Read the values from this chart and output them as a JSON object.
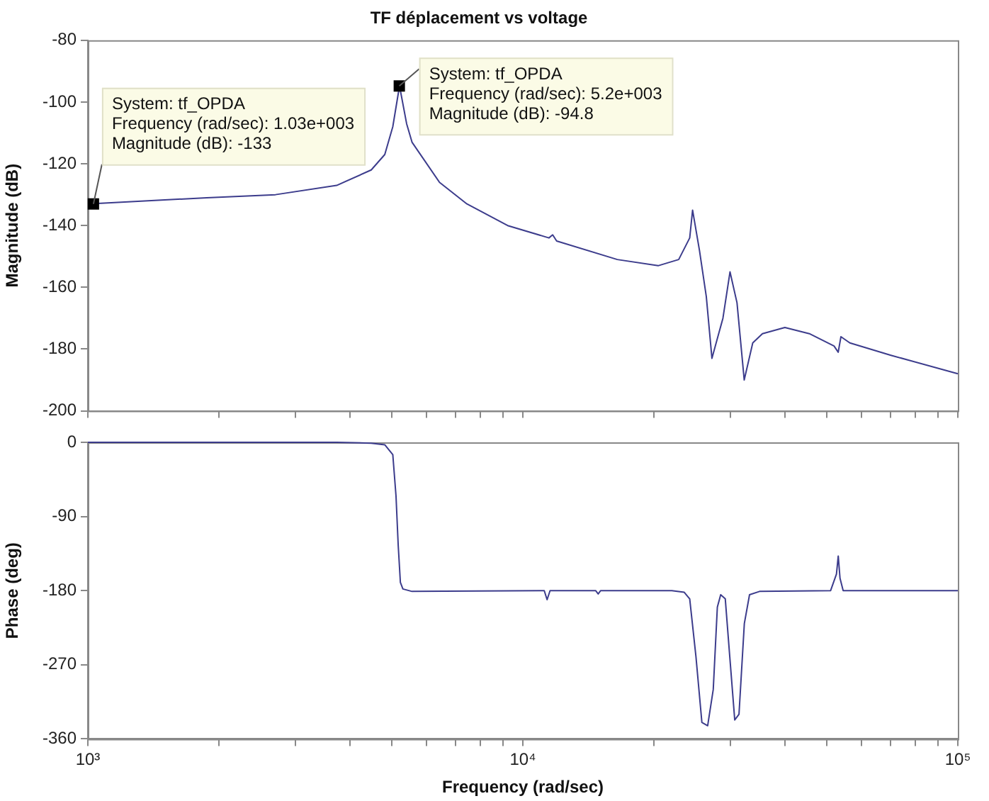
{
  "chart_data": [
    {
      "type": "line",
      "title": "TF déplacement vs voltage",
      "ylabel": "Magnitude (dB)",
      "log": "x",
      "grid": false,
      "tick_labels": "y",
      "color": "#3c3c8c",
      "x": [
        1000,
        1877,
        2699,
        3733,
        4482,
        4815,
        5024,
        5206,
        5405,
        5562,
        6433,
        7438,
        9227,
        11480,
        11710,
        11960,
        16490,
        20460,
        22820,
        24190,
        24560,
        25470,
        26410,
        27210,
        28840,
        29940,
        31070,
        32280,
        33770,
        35550,
        40030,
        45560,
        51930,
        53090,
        53860,
        56460,
        70170,
        100000
      ],
      "values": [
        -133,
        -131,
        -130,
        -127,
        -122,
        -117,
        -108,
        -94.8,
        -107,
        -113,
        -126,
        -133,
        -140,
        -144,
        -143,
        -145,
        -151,
        -153,
        -151,
        -144,
        -135,
        -148,
        -163,
        -183,
        -170,
        -155,
        -165,
        -190,
        -178,
        -175,
        -173,
        -175,
        -179,
        -181,
        -176,
        -178,
        -182,
        -188
      ],
      "xlim": [
        1000,
        100000
      ],
      "xticks": [
        {
          "value": 1000,
          "label": null
        },
        {
          "value": 2000,
          "label": null
        },
        {
          "value": 3000,
          "label": null
        },
        {
          "value": 4000,
          "label": null
        },
        {
          "value": 5000,
          "label": null
        },
        {
          "value": 6000,
          "label": null
        },
        {
          "value": 7000,
          "label": null
        },
        {
          "value": 8000,
          "label": null
        },
        {
          "value": 9000,
          "label": null
        },
        {
          "value": 10000,
          "label": null
        },
        {
          "value": 20000,
          "label": null
        },
        {
          "value": 30000,
          "label": null
        },
        {
          "value": 40000,
          "label": null
        },
        {
          "value": 50000,
          "label": null
        },
        {
          "value": 60000,
          "label": null
        },
        {
          "value": 70000,
          "label": null
        },
        {
          "value": 80000,
          "label": null
        },
        {
          "value": 90000,
          "label": null
        },
        {
          "value": 100000,
          "label": null
        }
      ],
      "ylim": [
        -200,
        -80
      ],
      "yticks": [
        -200,
        -180,
        -160,
        -140,
        -120,
        -100,
        -80
      ],
      "annotations": [
        {
          "text": "System: tf_OPDA\nFrequency (rad/sec): 1.03e+003\nMagnitude (dB): -133",
          "x": 1030,
          "y": -133
        },
        {
          "text": "System: tf_OPDA\nFrequency (rad/sec): 5.2e+003\nMagnitude (dB): -94.8",
          "x": 5200,
          "y": -94.8
        }
      ]
    },
    {
      "type": "line",
      "ylabel": "Phase (deg)",
      "xlabel": "Frequency (rad/sec)",
      "log": "x",
      "grid": false,
      "color": "#3c3c8c",
      "x": [
        1000,
        3733,
        4482,
        4815,
        5024,
        5110,
        5170,
        5230,
        5300,
        5562,
        11200,
        11370,
        11550,
        14700,
        14900,
        15100,
        22000,
        23500,
        24190,
        25000,
        25800,
        26600,
        27400,
        28000,
        28500,
        29200,
        29900,
        30700,
        31400,
        32300,
        33200,
        35000,
        51000,
        52600,
        53100,
        53600,
        54500,
        100000
      ],
      "values": [
        0,
        0,
        -1,
        -3,
        -15,
        -65,
        -125,
        -170,
        -178,
        -181,
        -180,
        -191,
        -180,
        -180,
        -184,
        -180,
        -180,
        -182,
        -190,
        -260,
        -340,
        -344,
        -300,
        -200,
        -185,
        -190,
        -260,
        -337,
        -330,
        -220,
        -185,
        -181,
        -180,
        -160,
        -138,
        -165,
        -180,
        -180
      ],
      "xlim": [
        1000,
        100000
      ],
      "xticks": [
        {
          "value": 1000,
          "label": "10³"
        },
        {
          "value": 2000,
          "label": null
        },
        {
          "value": 3000,
          "label": null
        },
        {
          "value": 4000,
          "label": null
        },
        {
          "value": 5000,
          "label": null
        },
        {
          "value": 6000,
          "label": null
        },
        {
          "value": 7000,
          "label": null
        },
        {
          "value": 8000,
          "label": null
        },
        {
          "value": 9000,
          "label": null
        },
        {
          "value": 10000,
          "label": "10⁴"
        },
        {
          "value": 20000,
          "label": null
        },
        {
          "value": 30000,
          "label": null
        },
        {
          "value": 40000,
          "label": null
        },
        {
          "value": 50000,
          "label": null
        },
        {
          "value": 60000,
          "label": null
        },
        {
          "value": 70000,
          "label": null
        },
        {
          "value": 80000,
          "label": null
        },
        {
          "value": 90000,
          "label": null
        },
        {
          "value": 100000,
          "label": "10⁵"
        }
      ],
      "ylim": [
        -360,
        0
      ],
      "yticks": [
        -360,
        -270,
        -180,
        -90,
        0
      ]
    }
  ]
}
